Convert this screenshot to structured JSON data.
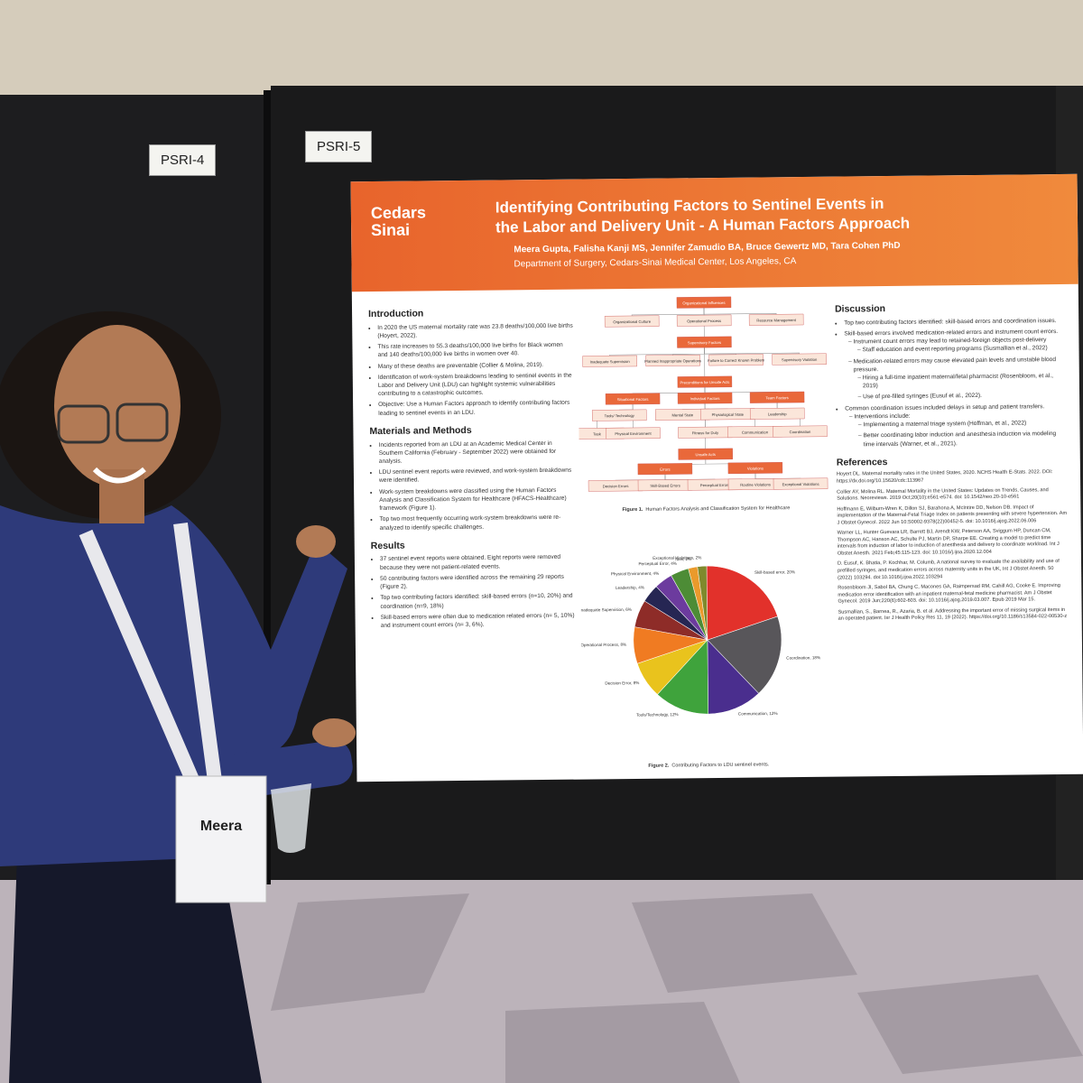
{
  "labels": {
    "left_board": "PSRI-4",
    "right_board": "PSRI-5"
  },
  "badge": {
    "name": "Meera"
  },
  "poster": {
    "logo": [
      "Cedars",
      "Sinai"
    ],
    "title": [
      "Identifying Contributing Factors to Sentinel Events in",
      "the Labor and Delivery Unit - A Human Factors Approach"
    ],
    "authors": "Meera Gupta, Falisha Kanji MS, Jennifer Zamudio BA, Bruce Gewertz MD, Tara Cohen PhD",
    "affiliation": "Department of Surgery, Cedars-Sinai Medical Center, Los Angeles, CA",
    "left_column": [
      {
        "heading": "Introduction",
        "items": [
          {
            "text": "In 2020 the US maternal mortality rate was 23.8 deaths/100,000 live births (Hoyert, 2022)."
          },
          {
            "text": "This rate increases to 55.3 deaths/100,000 live births for Black women and 140 deaths/100,000 live births in women over 40."
          },
          {
            "text": "Many of these deaths are preventable (Collier & Molina, 2019)."
          },
          {
            "text": "Identification of work-system breakdowns leading to sentinel events in the Labor and Delivery Unit (LDU) can highlight systemic vulnerabilities contributing to a catastrophic outcomes."
          },
          {
            "text": "Objective: Use a Human Factors approach to identify contributing factors leading to sentinel events in an LDU."
          }
        ]
      },
      {
        "heading": "Materials and Methods",
        "items": [
          {
            "text": "Incidents reported from an LDU at an Academic Medical Center in Southern California (February - September 2022) were obtained for analysis."
          },
          {
            "text": "LDU sentinel event reports were reviewed, and work-system breakdowns were identified."
          },
          {
            "text": "Work-system breakdowns were classified using the Human Factors Analysis and Classification System for Healthcare (HFACS-Healthcare) framework (Figure 1)."
          },
          {
            "text": "Top two most frequently occurring work-system breakdowns were re-analyzed to identify specific challenges."
          }
        ]
      },
      {
        "heading": "Results",
        "items": [
          {
            "text": "37 sentinel event reports were obtained. Eight reports were removed because they were not patient-related events."
          },
          {
            "text": "50 contributing factors were identified across the remaining 29 reports (Figure 2)."
          },
          {
            "text": "Top two contributing factors identified: skill-based errors (n=10, 20%) and coordination (n=9, 18%)"
          },
          {
            "text": "Skill-based errors were often due to medication related errors (n= 5, 10%) and instrument count errors (n= 3, 6%)."
          }
        ]
      }
    ],
    "right_column": [
      {
        "heading": "Discussion",
        "items": [
          {
            "text": "Top two contributing factors identified: skill-based errors and coordination issues."
          },
          {
            "text": "Skill-based errors involved medication-related errors and instrument count errors.",
            "sub": [
              {
                "text": "Instrument count errors may lead to retained-foreign objects post-delivery",
                "sub": [
                  {
                    "text": "Staff education and event reporting programs (Susmallian et al., 2022)"
                  }
                ]
              },
              {
                "text": "Medication-related errors may cause elevated pain levels and unstable blood pressure.",
                "sub": [
                  {
                    "text": "Hiring a full-time inpatient maternal/fetal pharmacist (Rosenbloom, et al., 2019)"
                  },
                  {
                    "text": "Use of pre-filled syringes (Eusuf et al., 2022)."
                  }
                ]
              }
            ]
          },
          {
            "text": "Common coordination issues included delays in setup and patient transfers.",
            "sub": [
              {
                "text": "Interventions include:",
                "sub": [
                  {
                    "text": "Implementing a maternal triage system (Hoffman, et al., 2022)"
                  },
                  {
                    "text": "Better coordinating labor induction and anesthesia induction via modeling time intervals (Warner, et al., 2021)."
                  }
                ]
              }
            ]
          }
        ]
      },
      {
        "heading": "References",
        "refs": [
          "Hoyert DL. Maternal mortality rates in the United States, 2020. NCHS Health E-Stats. 2022. DOI: https://dx.doi.org/10.15620/cdc:113967",
          "Collier AY, Molina RL. Maternal Mortality in the United States: Updates on Trends, Causes, and Solutions. Neoreviews. 2019 Oct;20(10):e561-e574. doi: 10.1542/neo.20-10-e561",
          "Hoffmann E, Wilburn-Wren K, Dillon SJ, Barahona A, McIntire DD, Nelson DB. Impact of implementation of the Maternal-Fetal Triage Index on patients presenting with severe hypertension. Am J Obstet Gynecol. 2022 Jun 10:S0002-9378(22)00452-5. doi: 10.1016/j.ajog.2022.06.006",
          "Warner LL, Hunter Guevara LR, Barrett BJ, Arendt KW, Peterson AA, Sviggum HP, Duncan CM, Thompson AC, Hanson AC, Schulte PJ, Martin DP, Sharpe EE. Creating a model to predict time intervals from induction of labor to induction of anesthesia and delivery to coordinate workload. Int J Obstet Anesth. 2021 Feb;45:115-123. doi: 10.1016/j.ijoa.2020.12.004",
          "D. Eusuf, K. Bhatia, P. Kochhar, M. Columb, A national survey to evaluate the availability and use of prefilled syringes, and medication errors across maternity units in the UK, Int J Obstet Anesth. 50 (2022) 103294. doi:10.1016/j.ijoa.2022.103294",
          "Rosenbloom JI, Sabol BA, Chung C, Macones GA, Raimpersad RM, Cahill AG, Cooke E. Improving medication error identification with an inpatient maternal-fetal medicine pharmacist. Am J Obstet Gynecol. 2019 Jun;220(6):602-603. doi: 10.1016/j.ajog.2019.03.007. Epub 2019 Mar 15.",
          "Susmallian, S., Barnea, R., Azaria, B. et al. Addressing the important error of missing surgical items in an operated patient. Isr J Health Policy Res 11, 19 (2022). https://doi.org/10.1186/s13584-022-00530-z"
        ]
      }
    ],
    "figure1": {
      "nodes": [
        "Organizational Influences",
        "Organizational Culture",
        "Operational Process",
        "Resource Management",
        "Supervisory Factors",
        "Inadequate Supervision",
        "Planned Inappropriate Operations",
        "Failure to Correct Known Problem",
        "Supervisory Violation",
        "Preconditions for Unsafe Acts",
        "Situational Factors",
        "Individual Factors",
        "Team Factors",
        "Tools/ Technology",
        "Task",
        "Physical Environment",
        "Mental State",
        "Physiological State",
        "Fitness for Duty",
        "Leadership",
        "Communication",
        "Coordination",
        "Unsafe Acts",
        "Errors",
        "Violations",
        "Decision Errors",
        "Skill-Based Errors",
        "Perceptual Errors",
        "Routine Violations",
        "Exceptional Violations"
      ],
      "caption_label": "Figure 1.",
      "caption": "Human Factors Analysis and Classification System for Healthcare"
    },
    "figure2": {
      "caption_label": "Figure 2.",
      "caption": "Contributing Factors to LDU sentinel events."
    }
  },
  "chart_data": {
    "type": "pie",
    "values": [
      20,
      18,
      12,
      12,
      8,
      8,
      6,
      4,
      4,
      4,
      2,
      2
    ],
    "value_labels": [
      "Skill-based error, 20%",
      "Coordination, 18%",
      "Communication, 12%",
      "Tools/Technology, 12%",
      "Decision Error, 8%",
      "Operational Process, 8%",
      "Inadequate Supervision, 6%",
      "Leadership, 4%",
      "Physical Environment, 4%",
      "Perceptual Error, 4%",
      "Task, 2%",
      "Exceptional Violations, 2%"
    ],
    "colors": [
      "#e2312b",
      "#58565a",
      "#4a2e8e",
      "#3fa33c",
      "#e9c31d",
      "#f07b22",
      "#8e2c28",
      "#262653",
      "#6c3b9e",
      "#4d8c36",
      "#ea9a2c",
      "#7f8a2d"
    ]
  }
}
